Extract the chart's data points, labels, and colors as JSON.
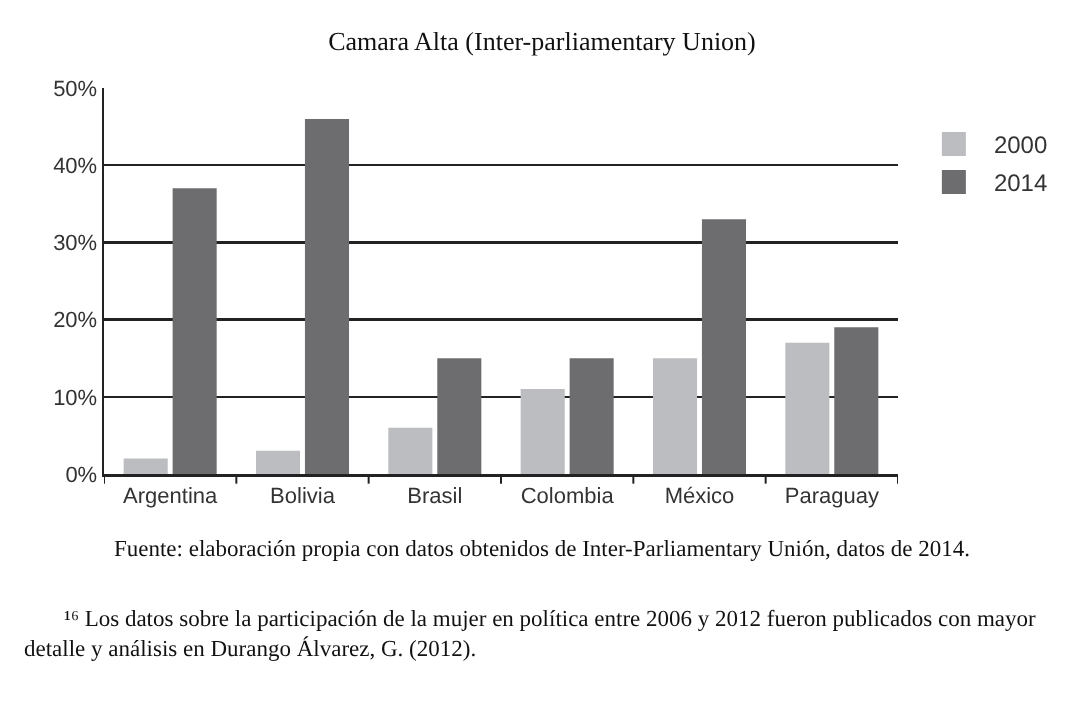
{
  "chart_data": {
    "type": "bar",
    "title": "Camara Alta (Inter-parliamentary Union)",
    "categories": [
      "Argentina",
      "Bolivia",
      "Brasil",
      "Colombia",
      "México",
      "Paraguay"
    ],
    "series": [
      {
        "name": "2000",
        "color": "#bcbdc0",
        "values": [
          2,
          3,
          6,
          11,
          15,
          17
        ]
      },
      {
        "name": "2014",
        "color": "#6d6d6f",
        "values": [
          37,
          46,
          15,
          15,
          33,
          19
        ]
      }
    ],
    "ylim": [
      0,
      50
    ],
    "yticks": [
      {
        "value": 0,
        "label": "0%"
      },
      {
        "value": 10,
        "label": "10%"
      },
      {
        "value": 20,
        "label": "20%"
      },
      {
        "value": 30,
        "label": "30%"
      },
      {
        "value": 40,
        "label": "40%"
      },
      {
        "value": 50,
        "label": "50%"
      }
    ],
    "grid": "y",
    "legend": "top right",
    "annotations": [
      "Fuente: elaboración propia con datos obtenidos de Inter-Parliamentary Unión, datos de 2014.",
      "¹⁶ Los datos sobre la participación de la mujer en política entre 2006 y 2012 fueron publicados con mayor detalle y análisis en Durango Álvarez, G. (2012)."
    ]
  }
}
